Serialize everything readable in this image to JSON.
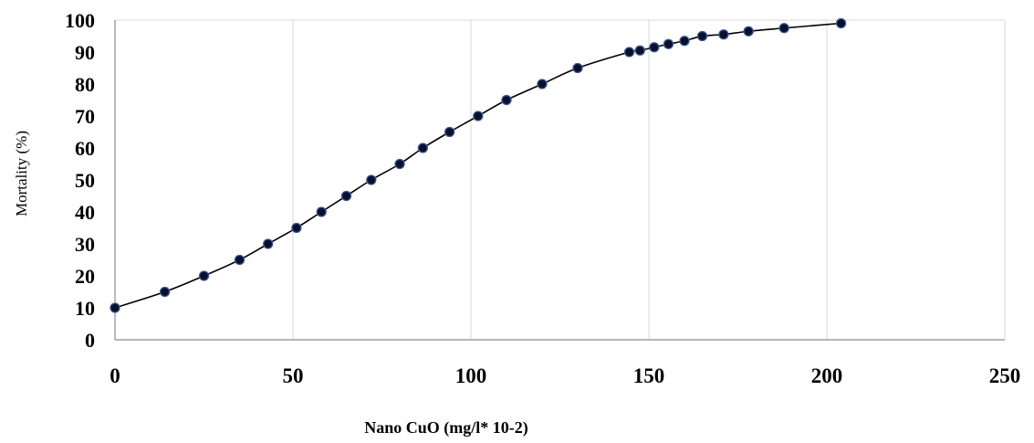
{
  "chart_data": {
    "type": "scatter",
    "title": "",
    "xlabel": "Nano CuO (mg/l* 10-2)",
    "ylabel": "Mortality (%)",
    "xlim": [
      0,
      250
    ],
    "ylim": [
      0,
      100
    ],
    "x_ticks": [
      "0",
      "50",
      "100",
      "150",
      "200",
      "250"
    ],
    "y_ticks": [
      "0",
      "10",
      "20",
      "30",
      "40",
      "50",
      "60",
      "70",
      "80",
      "90",
      "100"
    ],
    "grid": "vertical",
    "legend": "none",
    "marker_color": "#0a0f2a",
    "marker_edge_color": "#3a5a9a",
    "line_color": "#000000",
    "series": [
      {
        "x": [
          0,
          14,
          25,
          35,
          43,
          51,
          58,
          65,
          72,
          80,
          86.5,
          94,
          102,
          110,
          120,
          130,
          144.5,
          147.5,
          151.5,
          155.5,
          160,
          165,
          171,
          178,
          188,
          204
        ],
        "y": [
          10,
          15,
          20,
          25,
          30,
          35,
          40,
          45,
          50,
          55,
          60,
          65,
          70,
          75,
          80,
          85,
          90,
          90.5,
          91.5,
          92.5,
          93.5,
          95,
          95.5,
          96.5,
          97.5,
          99
        ]
      }
    ]
  }
}
